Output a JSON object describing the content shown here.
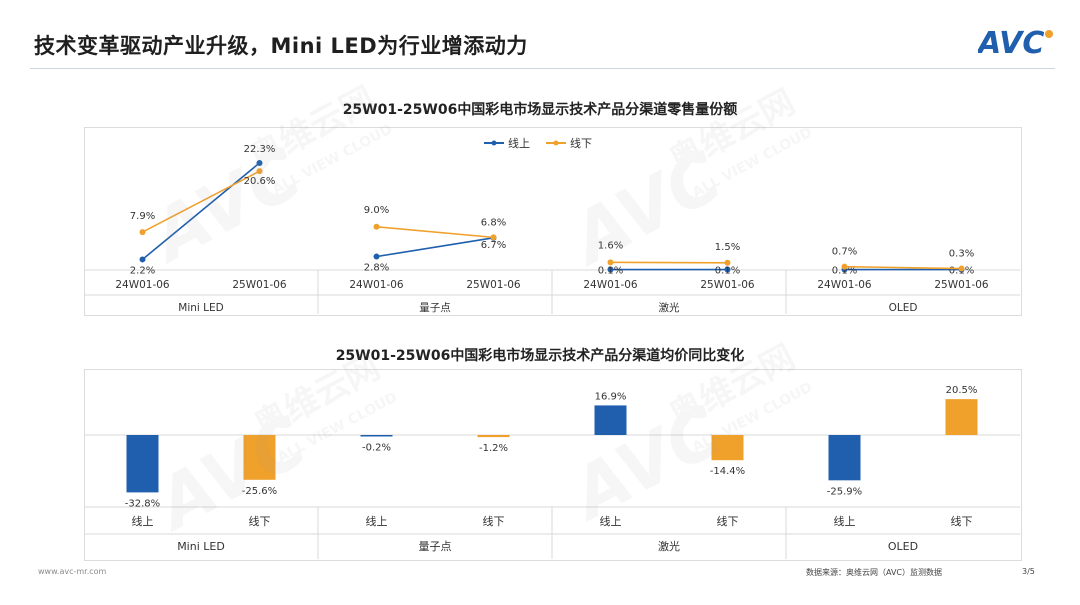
{
  "slide": {
    "title": "技术变革驱动产业升级，Mini LED为行业增添动力",
    "logo_text": "AVC",
    "footer_url": "www.avc-mr.com",
    "footer_source": "数据来源：奥维云网（AVC）监测数据",
    "page_number": "3/5",
    "watermark_brand": "AVC",
    "watermark_cn": "奥维云网",
    "watermark_en": "ALL VIEW CLOUD"
  },
  "colors": {
    "online": "#1f5fae",
    "offline": "#f0a12c",
    "brand": "#1f5fae",
    "grid": "#d9d9d9"
  },
  "chart_data": [
    {
      "type": "line",
      "title": "25W01-25W06中国彩电市场显示技术产品分渠道零售量份额",
      "legend_position": "top-center",
      "groups": [
        "Mini LED",
        "量子点",
        "激光",
        "OLED"
      ],
      "periods": [
        "24W01-06",
        "25W01-06"
      ],
      "series": [
        {
          "name": "线上",
          "color": "#1f5fae",
          "values": [
            [
              2.2,
              22.3
            ],
            [
              2.8,
              6.7
            ],
            [
              0.1,
              0.1
            ],
            [
              0.1,
              0.1
            ]
          ],
          "labels": [
            [
              "2.2%",
              "22.3%"
            ],
            [
              "2.8%",
              "6.7%"
            ],
            [
              "0.1%",
              "0.1%"
            ],
            [
              "0.1%",
              "0.1%"
            ]
          ]
        },
        {
          "name": "线下",
          "color": "#f0a12c",
          "values": [
            [
              7.9,
              20.6
            ],
            [
              9.0,
              6.8
            ],
            [
              1.6,
              1.5
            ],
            [
              0.7,
              0.3
            ]
          ],
          "labels": [
            [
              "7.9%",
              "20.6%"
            ],
            [
              "9.0%",
              "6.8%"
            ],
            [
              "1.6%",
              "1.5%"
            ],
            [
              "0.7%",
              "0.3%"
            ]
          ]
        }
      ],
      "ylim": [
        0,
        25
      ]
    },
    {
      "type": "bar",
      "title": "25W01-25W06中国彩电市场显示技术产品分渠道均价同比变化",
      "groups": [
        "Mini LED",
        "量子点",
        "激光",
        "OLED"
      ],
      "categories": [
        "线上",
        "线下"
      ],
      "values": [
        [
          -32.8,
          -25.6
        ],
        [
          -0.2,
          -1.2
        ],
        [
          16.9,
          -14.4
        ],
        [
          -25.9,
          20.5
        ]
      ],
      "labels": [
        [
          "-32.8%",
          "-25.6%"
        ],
        [
          "-0.2%",
          "-1.2%"
        ],
        [
          "16.9%",
          "-14.4%"
        ],
        [
          "-25.9%",
          "20.5%"
        ]
      ],
      "ylim": [
        -40,
        25
      ]
    }
  ]
}
